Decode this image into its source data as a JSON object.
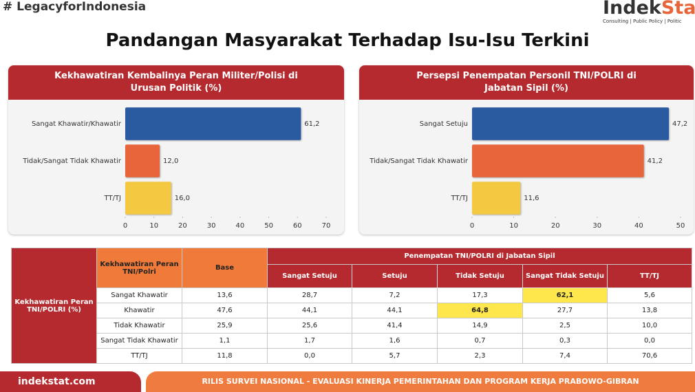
{
  "header": {
    "hashtag_icon": "#",
    "hashtag": "LegacyforIndonesia",
    "logo": {
      "main": "Indek",
      "accent": "Stat",
      "tagline": "Consulting | Public Policy | Politic"
    },
    "title": "Pandangan Masyarakat Terhadap Isu-Isu Terkini"
  },
  "chart_data": [
    {
      "type": "bar",
      "orientation": "horizontal",
      "title": "Kekhawatiran Kembalinya Peran Militer/Polisi di Urusan Politik (%)",
      "categories": [
        "Sangat Khawatir/Khawatir",
        "Tidak/Sangat Tidak Khawatir",
        "TT/TJ"
      ],
      "values": [
        61.2,
        12.0,
        16.0
      ],
      "value_labels": [
        "61,2",
        "12,0",
        "16,0"
      ],
      "colors": [
        "#2a5aa0",
        "#e8643a",
        "#f5c842"
      ],
      "xlim": [
        0,
        70
      ],
      "xticks": [
        0,
        10,
        20,
        30,
        40,
        50,
        60,
        70
      ]
    },
    {
      "type": "bar",
      "orientation": "horizontal",
      "title": "Persepsi Penempatan Personil TNI/POLRI di Jabatan Sipil (%)",
      "categories": [
        "Sangat Setuju",
        "Tidak/Sangat Tidak Khawatir",
        "TT/TJ"
      ],
      "values": [
        47.2,
        41.2,
        11.6
      ],
      "value_labels": [
        "47,2",
        "41,2",
        "11,6"
      ],
      "colors": [
        "#2a5aa0",
        "#e8643a",
        "#f5c842"
      ],
      "xlim": [
        0,
        50
      ],
      "xticks": [
        0,
        10,
        20,
        30,
        40,
        50
      ]
    }
  ],
  "table": {
    "row_header": "Kekhawatiran Peran TNI/POLRI (%)",
    "col_header": "Kekhawatiran Peran TNI/Polri",
    "base_header": "Base",
    "group_header": "Penempatan TNI/POLRI di Jabatan Sipil",
    "columns": [
      "Sangat Setuju",
      "Setuju",
      "Tidak Setuju",
      "Sangat Tidak Setuju",
      "TT/TJ"
    ],
    "rows": [
      [
        "Sangat Khawatir",
        "13,6",
        "28,7",
        "7,2",
        "17,3",
        "62,1",
        "5,6"
      ],
      [
        "Khawatir",
        "47,6",
        "44,1",
        "44,1",
        "64,8",
        "27,7",
        "13,8"
      ],
      [
        "Tidak Khawatir",
        "25,9",
        "25,6",
        "41,4",
        "14,9",
        "2,5",
        "10,0"
      ],
      [
        "Sangat Tidak Khawatir",
        "1,1",
        "1,7",
        "1,6",
        "0,7",
        "0,3",
        "0,0"
      ],
      [
        "TT/TJ",
        "11,8",
        "0,0",
        "5,7",
        "2,3",
        "7,4",
        "70,6"
      ]
    ]
  },
  "footer": {
    "site": "indekstat.com",
    "release": "RILIS SURVEI NASIONAL - EVALUASI KINERJA PEMERINTAHAN DAN PROGRAM KERJA PRABOWO-GIBRAN"
  }
}
